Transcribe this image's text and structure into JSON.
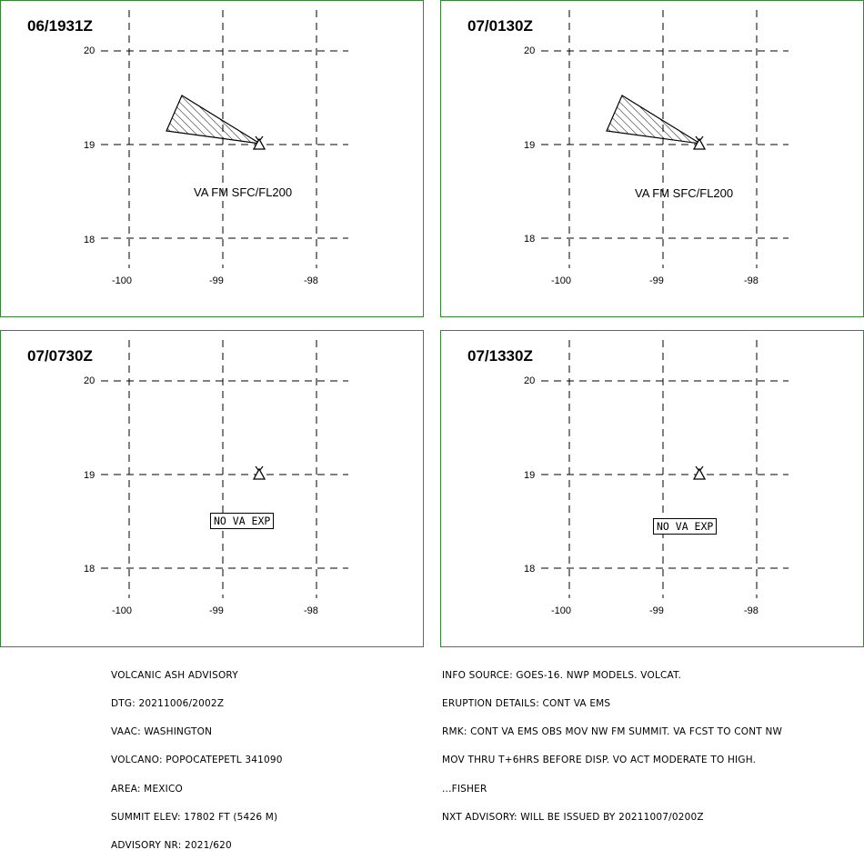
{
  "panels": [
    {
      "title": "06/1931Z",
      "lat_labels": [
        "20",
        "19",
        "18"
      ],
      "lon_labels": [
        "-100",
        "-99",
        "-98"
      ],
      "has_ash_polygon": true,
      "ash_annotation": "VA FM SFC/FL200",
      "no_va_text": ""
    },
    {
      "title": "07/0130Z",
      "lat_labels": [
        "20",
        "19",
        "18"
      ],
      "lon_labels": [
        "-100",
        "-99",
        "-98"
      ],
      "has_ash_polygon": true,
      "ash_annotation": "VA FM SFC/FL200",
      "no_va_text": ""
    },
    {
      "title": "07/0730Z",
      "lat_labels": [
        "20",
        "19",
        "18"
      ],
      "lon_labels": [
        "-100",
        "-99",
        "-98"
      ],
      "has_ash_polygon": false,
      "ash_annotation": "",
      "no_va_text": "NO VA EXP"
    },
    {
      "title": "07/1330Z",
      "lat_labels": [
        "20",
        "19",
        "18"
      ],
      "lon_labels": [
        "-100",
        "-99",
        "-98"
      ],
      "has_ash_polygon": false,
      "ash_annotation": "",
      "no_va_text": "NO VA EXP"
    }
  ],
  "volcano_symbol": "volcano-triangle-icon",
  "advisory_left": [
    "VOLCANIC ASH ADVISORY",
    "DTG: 20211006/2002Z",
    "VAAC: WASHINGTON",
    "VOLCANO: POPOCATEPETL 341090",
    "AREA: MEXICO",
    "SUMMIT ELEV: 17802 FT (5426 M)",
    "ADVISORY NR: 2021/620"
  ],
  "advisory_right": [
    "INFO SOURCE: GOES-16. NWP MODELS. VOLCAT.",
    "ERUPTION DETAILS: CONT VA EMS",
    "RMK: CONT VA EMS OBS MOV NW FM SUMMIT. VA FCST TO CONT NW",
    "MOV THRU T+6HRS BEFORE DISP. VO ACT MODERATE TO HIGH.",
    "...FISHER",
    "NXT ADVISORY: WILL BE ISSUED BY 20211007/0200Z"
  ],
  "colors": {
    "panel_border": "#2e8b2e",
    "grid": "#000000",
    "background": "#ffffff"
  }
}
